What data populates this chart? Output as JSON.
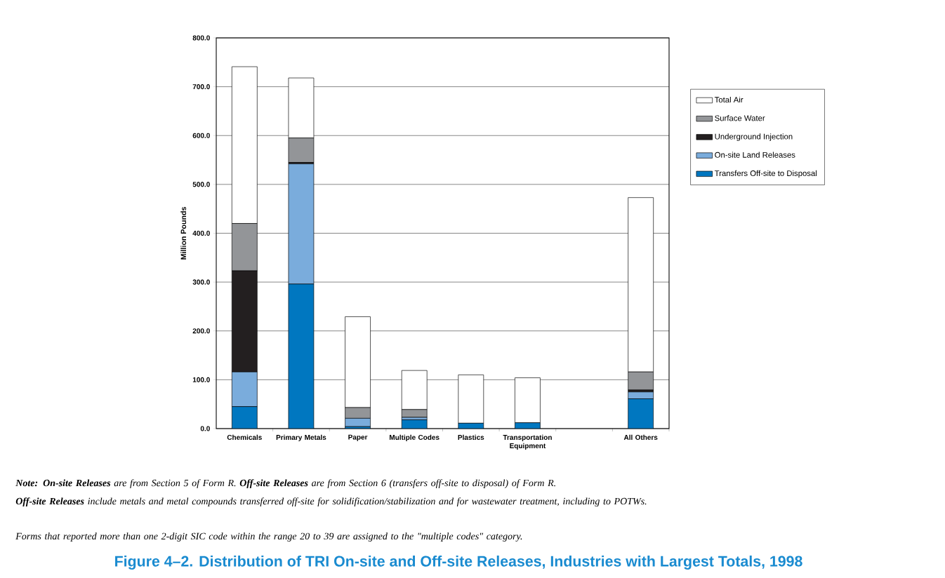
{
  "chart_data": {
    "type": "bar",
    "stacked": true,
    "title": "Figure 4–2.  Distribution of TRI On-site and Off-site Releases, Industries with Largest Totals, 1998",
    "ylabel": "Million Pounds",
    "categories": [
      "Chemicals",
      "Primary Metals",
      "Paper",
      "Multiple Codes",
      "Plastics",
      "Transportation Equipment",
      null,
      "All Others"
    ],
    "series": [
      {
        "name": "Transfers Off-site to Disposal",
        "color": "#0077c0",
        "values": [
          45,
          296,
          4,
          18,
          11,
          12,
          null,
          61
        ]
      },
      {
        "name": "On-site Land Releases",
        "color": "#7aacdc",
        "values": [
          71,
          246,
          17,
          5,
          0,
          0,
          null,
          14
        ]
      },
      {
        "name": "Underground Injection",
        "color": "#231f20",
        "values": [
          207,
          3,
          0,
          0,
          0,
          0,
          null,
          4
        ]
      },
      {
        "name": "Surface Water",
        "color": "#939598",
        "values": [
          97,
          50,
          22,
          16,
          0,
          0,
          null,
          37
        ]
      },
      {
        "name": "Total Air",
        "color": "#ffffff",
        "values": [
          321,
          123,
          186,
          80,
          99,
          92,
          null,
          357
        ]
      }
    ],
    "ylim": [
      0,
      800
    ],
    "yticks": [
      {
        "value": 0,
        "label": "0.0"
      },
      {
        "value": 100,
        "label": "100.0"
      },
      {
        "value": 200,
        "label": "200.0"
      },
      {
        "value": 300,
        "label": "300.0"
      },
      {
        "value": 400,
        "label": "400.0"
      },
      {
        "value": 500,
        "label": "500.0"
      },
      {
        "value": 600,
        "label": "600.0"
      },
      {
        "value": 700,
        "label": "700.0"
      },
      {
        "value": 800,
        "label": "800.0"
      }
    ],
    "grid": "y",
    "legend": "right",
    "annotations": [
      "**Note: On-site Releases** are from Section 5 of Form R. **Off-site Releases** are from Section 6 (transfers off-site to disposal) of Form R.",
      "**Off-site Releases** include metals and metal compounds transferred off-site for solidification/stabilization and for wastewater treatment, including to POTWs.",
      "Forms that reported more than one 2-digit SIC code within the range 20 to 39 are assigned to the \"multiple codes\" category."
    ]
  }
}
